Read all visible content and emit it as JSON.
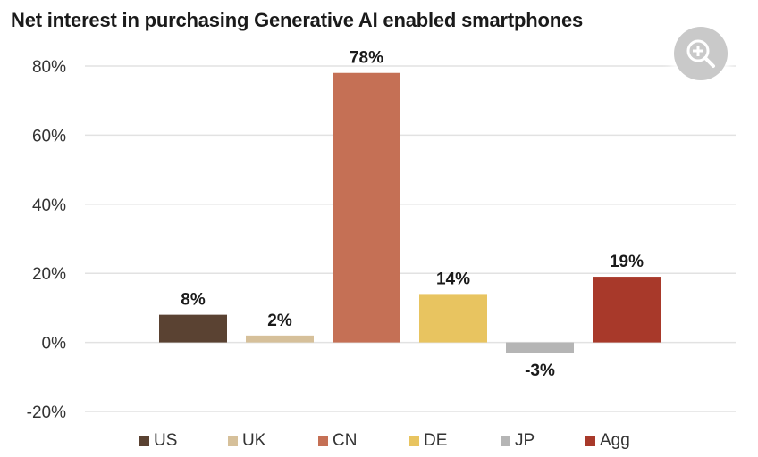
{
  "chart_data": {
    "type": "bar",
    "title": "Net interest in purchasing Generative AI enabled smartphones",
    "categories": [
      "US",
      "UK",
      "CN",
      "DE",
      "JP",
      "Agg"
    ],
    "values": [
      8,
      2,
      78,
      14,
      -3,
      19
    ],
    "data_labels": [
      "8%",
      "2%",
      "78%",
      "14%",
      "-3%",
      "19%"
    ],
    "colors": [
      "#5a4232",
      "#d6c09a",
      "#c57055",
      "#e8c460",
      "#b5b5b5",
      "#a8392a"
    ],
    "ylim": [
      -20,
      80
    ],
    "yticks": [
      80,
      60,
      40,
      20,
      0,
      -20
    ],
    "ytick_labels": [
      "80%",
      "60%",
      "40%",
      "20%",
      "0%",
      "-20%"
    ],
    "xlabel": "",
    "ylabel": "",
    "grid": true,
    "legend_position": "bottom"
  },
  "controls": {
    "zoom_icon": "zoom-in-icon"
  }
}
